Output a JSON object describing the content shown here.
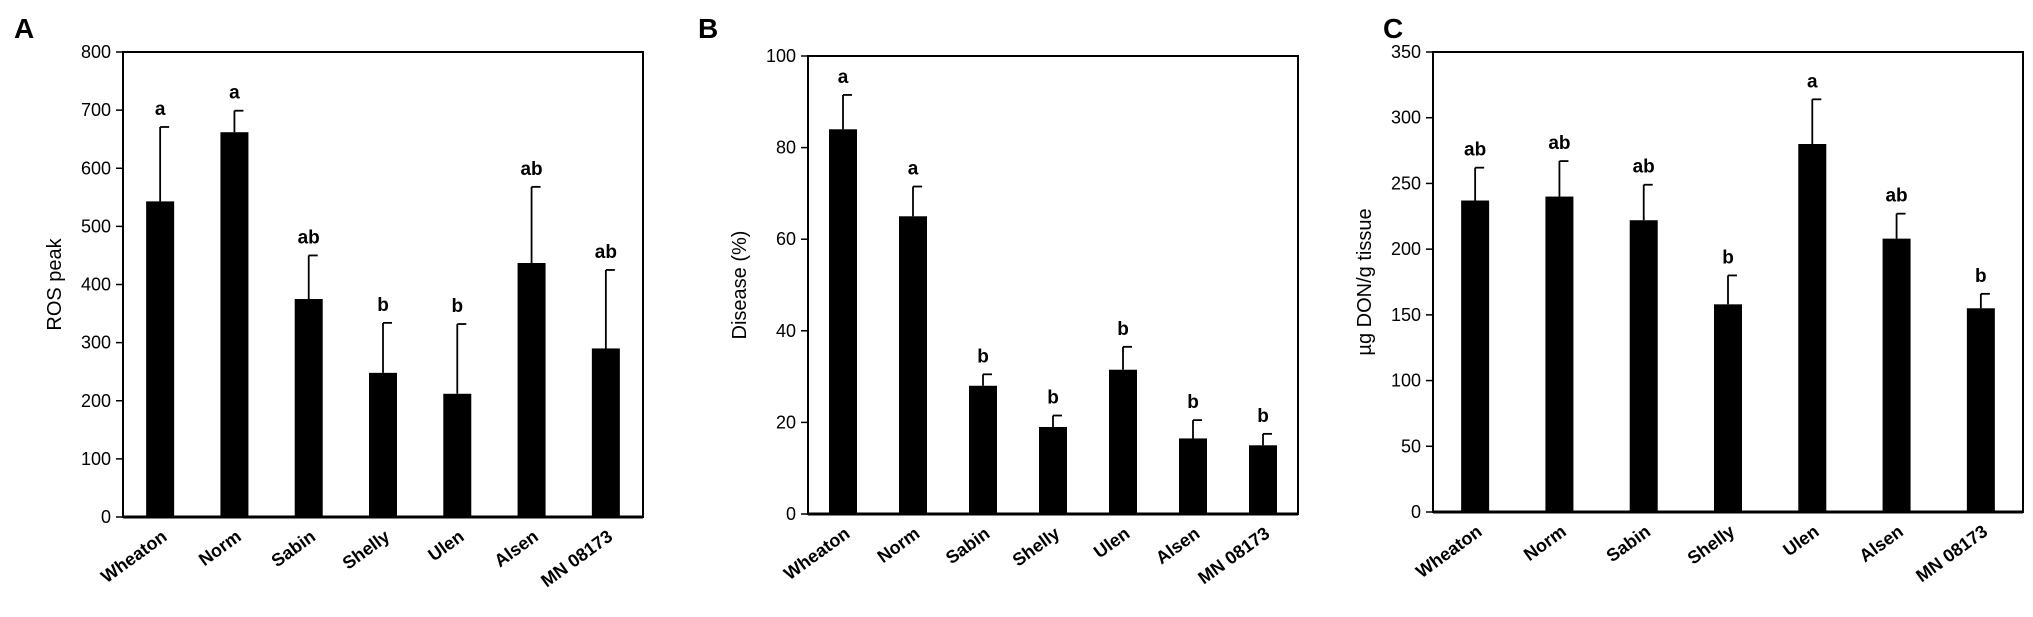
{
  "chart_data": [
    {
      "panel_label": "A",
      "type": "bar",
      "ylabel": "ROS peak",
      "ylim": [
        0,
        800
      ],
      "yticks": [
        0,
        100,
        200,
        300,
        400,
        500,
        600,
        700,
        800
      ],
      "categories": [
        "Wheaton",
        "Norm",
        "Sabin",
        "Shelly",
        "Ulen",
        "Alsen",
        "MN 08173"
      ],
      "values": [
        543,
        662,
        375,
        248,
        212,
        437,
        290
      ],
      "errors": [
        128,
        37,
        75,
        86,
        120,
        131,
        135
      ],
      "significance": [
        "a",
        "a",
        "ab",
        "b",
        "b",
        "ab",
        "ab"
      ],
      "bar_color": "#000000"
    },
    {
      "panel_label": "B",
      "type": "bar",
      "ylabel": "Disease (%)",
      "ylim": [
        0,
        100
      ],
      "yticks": [
        0,
        20,
        40,
        60,
        80,
        100
      ],
      "categories": [
        "Wheaton",
        "Norm",
        "Sabin",
        "Shelly",
        "Ulen",
        "Alsen",
        "MN 08173"
      ],
      "values": [
        84,
        65,
        28,
        19,
        31.5,
        16.5,
        15
      ],
      "errors": [
        7.5,
        6.5,
        2.5,
        2.5,
        5,
        4,
        2.5
      ],
      "significance": [
        "a",
        "a",
        "b",
        "b",
        "b",
        "b",
        "b"
      ],
      "bar_color": "#000000"
    },
    {
      "panel_label": "C",
      "type": "bar",
      "ylabel": "µg DON/g tissue",
      "ylim": [
        0,
        350
      ],
      "yticks": [
        0,
        50,
        100,
        150,
        200,
        250,
        300,
        350
      ],
      "categories": [
        "Wheaton",
        "Norm",
        "Sabin",
        "Shelly",
        "Ulen",
        "Alsen",
        "MN 08173"
      ],
      "values": [
        237,
        240,
        222,
        158,
        280,
        208,
        155
      ],
      "errors": [
        25,
        27,
        27,
        22,
        34,
        19,
        11
      ],
      "significance": [
        "ab",
        "ab",
        "ab",
        "b",
        "a",
        "ab",
        "b"
      ],
      "bar_color": "#000000"
    }
  ]
}
